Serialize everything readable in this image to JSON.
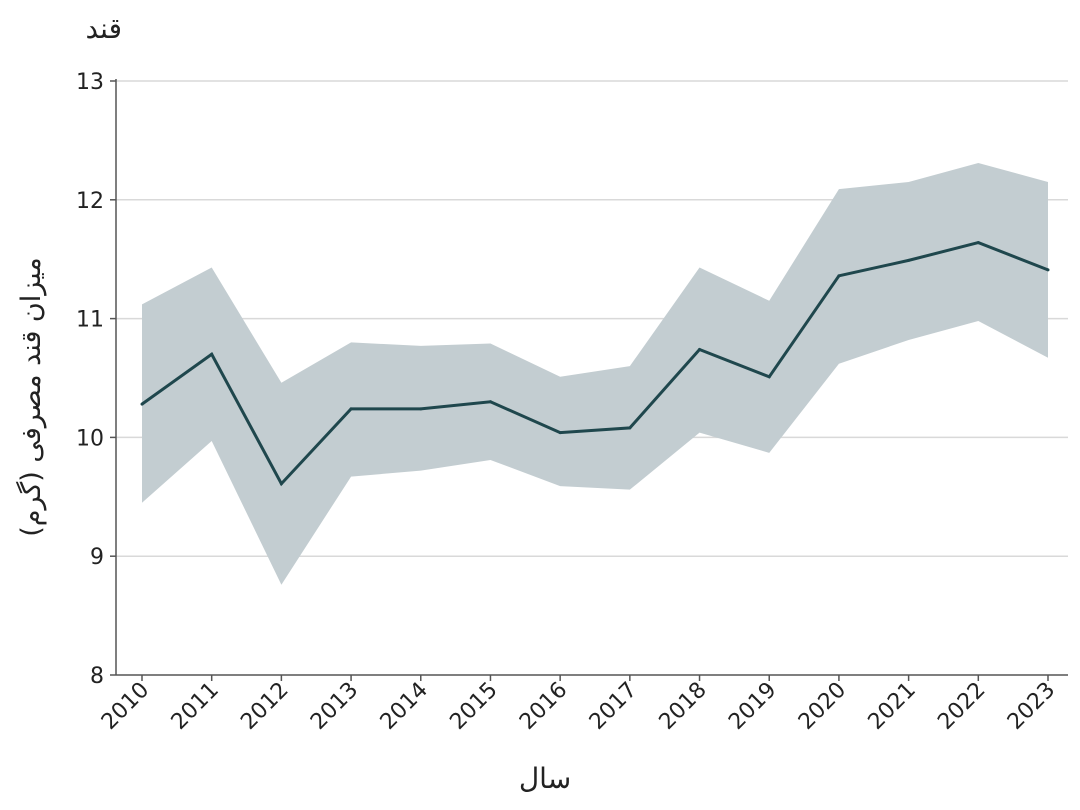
{
  "chart_data": {
    "type": "line",
    "title": "قند",
    "xlabel": "سال",
    "ylabel": "میزان قند مصرفی (گرم)",
    "ylim": [
      8,
      13
    ],
    "yticks": [
      8,
      9,
      10,
      11,
      12,
      13
    ],
    "grid": "horizontal",
    "legend": "none",
    "x": [
      2010,
      2011,
      2012,
      2013,
      2014,
      2015,
      2016,
      2017,
      2018,
      2019,
      2020,
      2021,
      2022,
      2023
    ],
    "series": [
      {
        "values": [
          10.28,
          10.7,
          9.61,
          10.24,
          10.24,
          10.3,
          10.04,
          10.08,
          10.74,
          10.51,
          11.36,
          11.49,
          11.64,
          11.41
        ],
        "upper": [
          11.12,
          11.43,
          10.46,
          10.8,
          10.77,
          10.79,
          10.51,
          10.6,
          11.43,
          11.15,
          12.09,
          12.15,
          12.31,
          12.15
        ],
        "lower": [
          9.45,
          9.97,
          8.76,
          9.67,
          9.72,
          9.81,
          9.59,
          9.56,
          10.04,
          9.87,
          10.62,
          10.82,
          10.98,
          10.67
        ]
      }
    ],
    "colors": {
      "line": "#1f474d",
      "band": "#c3cdd1",
      "grid": "#d9d9d9",
      "axis": "#555555"
    }
  }
}
